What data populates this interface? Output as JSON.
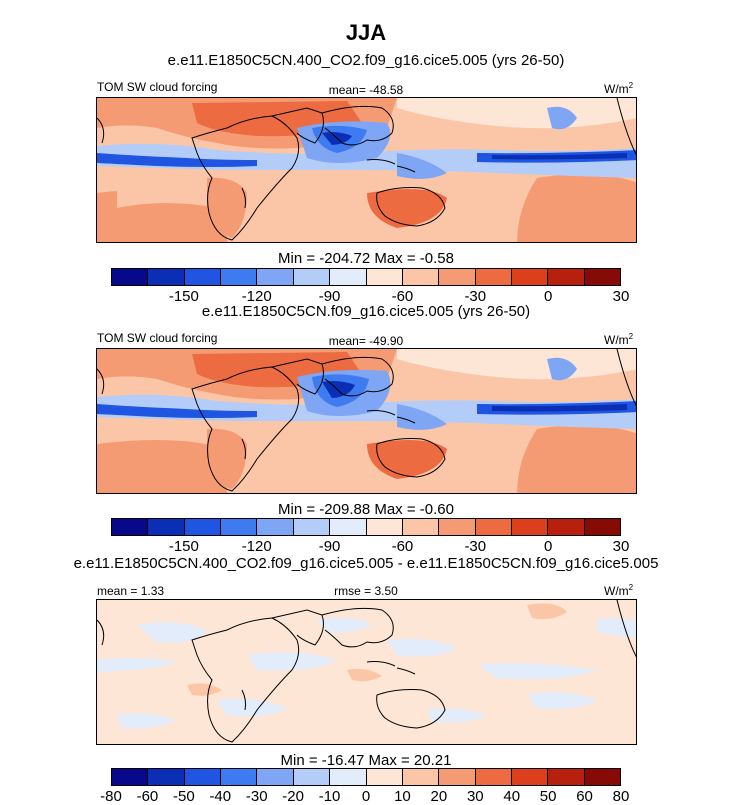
{
  "title": "JJA",
  "colors": {
    "palette": [
      "#08088a",
      "#0a2fb5",
      "#1f55e0",
      "#3f7bf0",
      "#7ea6f5",
      "#b4cdf8",
      "#e2ecfb",
      "#fde6d5",
      "#fbc6a7",
      "#f59b74",
      "#ec6b40",
      "#dc3f1c",
      "#b8200e",
      "#860a05"
    ],
    "land": "#000000"
  },
  "panels": [
    {
      "case": "e.e11.E1850C5CN.400_CO2.f09_g16.cice5.005 (yrs 26-50)",
      "field": "TOM SW cloud forcing",
      "mean": "mean= -48.58",
      "units": "W/m",
      "units_sup": "2",
      "minmax": "Min = -204.72 Max =  -0.58",
      "ticks": [
        "-150",
        "-120",
        "-90",
        "-60",
        "-30",
        "0",
        "30"
      ]
    },
    {
      "case": "e.e11.E1850C5CN.f09_g16.cice5.005 (yrs 26-50)",
      "field": "TOM SW cloud forcing",
      "mean": "mean= -49.90",
      "units": "W/m",
      "units_sup": "2",
      "minmax": "Min = -209.88 Max =  -0.60",
      "ticks": [
        "-150",
        "-120",
        "-90",
        "-60",
        "-30",
        "0",
        "30"
      ]
    },
    {
      "case": "e.e11.E1850C5CN.400_CO2.f09_g16.cice5.005 - e.e11.E1850C5CN.f09_g16.cice5.005",
      "mean": "mean =   1.33",
      "rmse": "rmse =   3.50",
      "units": "W/m",
      "units_sup": "2",
      "minmax": "Min = -16.47 Max =  20.21",
      "ticks": [
        "-80",
        "-60",
        "-50",
        "-40",
        "-30",
        "-20",
        "-10",
        "0",
        "10",
        "20",
        "30",
        "40",
        "50",
        "60",
        "80"
      ]
    }
  ]
}
